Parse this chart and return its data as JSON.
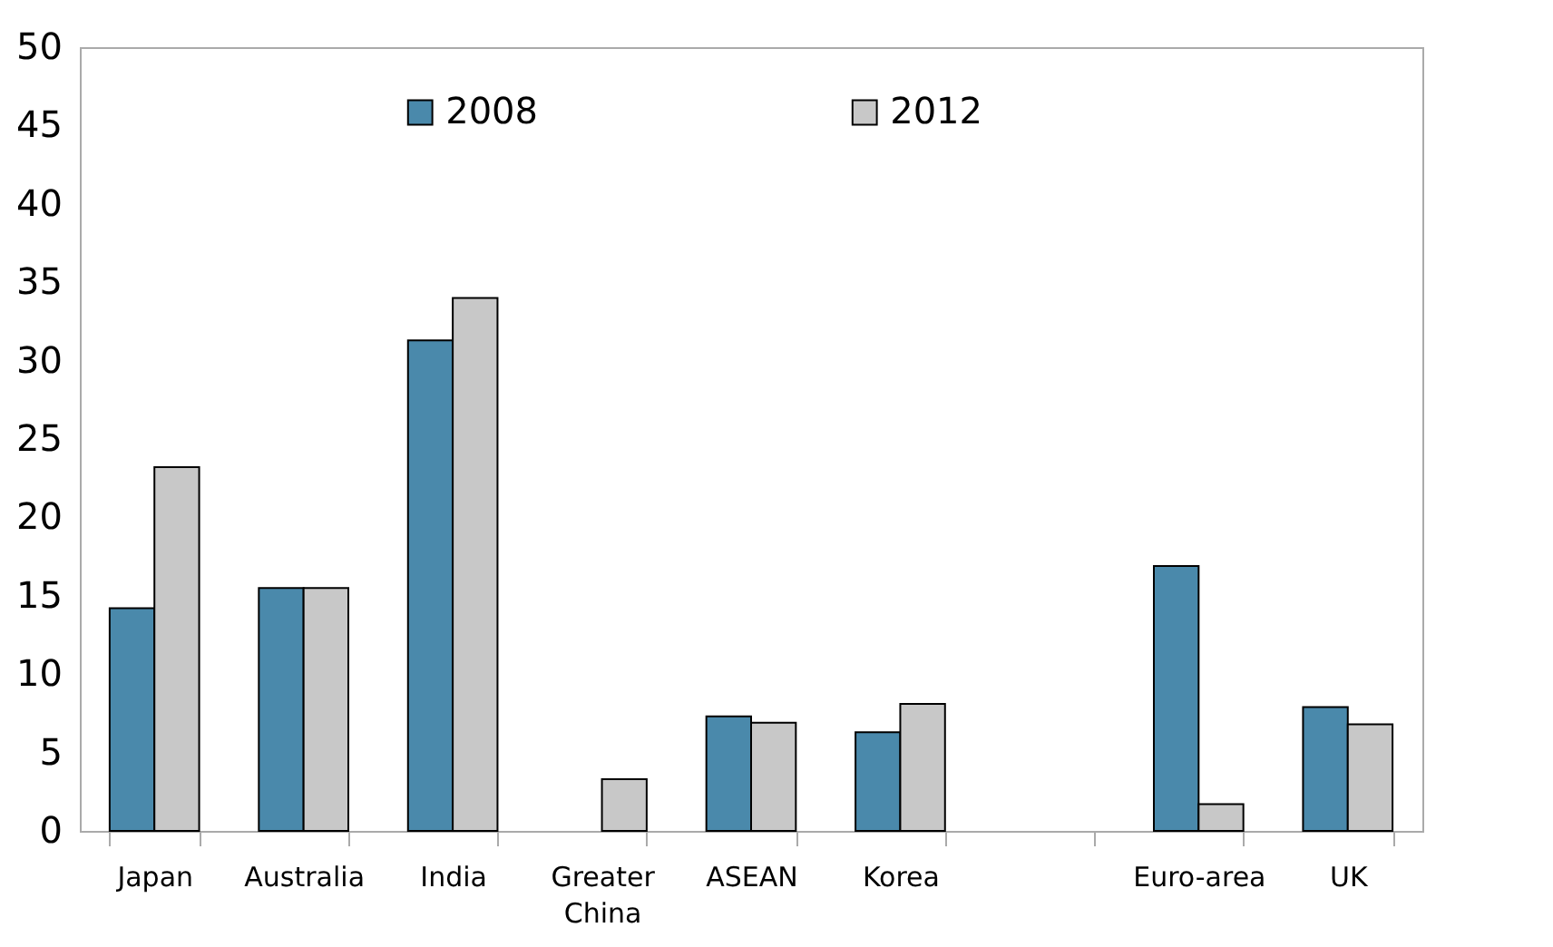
{
  "chart_data": {
    "type": "bar",
    "categories": [
      "Japan",
      "Australia",
      "India",
      "Greater China",
      "ASEAN",
      "Korea",
      null,
      "Euro-area",
      "UK"
    ],
    "series": [
      {
        "name": "2008",
        "color": "#4a89ab",
        "values": [
          14.2,
          15.5,
          31.3,
          null,
          7.3,
          6.3,
          null,
          16.9,
          7.9
        ]
      },
      {
        "name": "2012",
        "color": "#c8c8c8",
        "values": [
          23.2,
          15.5,
          34.0,
          3.3,
          6.9,
          8.1,
          null,
          1.7,
          6.8
        ]
      }
    ],
    "ylim": [
      0,
      50
    ],
    "yticks": [
      0,
      5,
      10,
      15,
      20,
      25,
      30,
      35,
      40,
      45,
      50
    ],
    "grid": false,
    "legend": "top"
  }
}
